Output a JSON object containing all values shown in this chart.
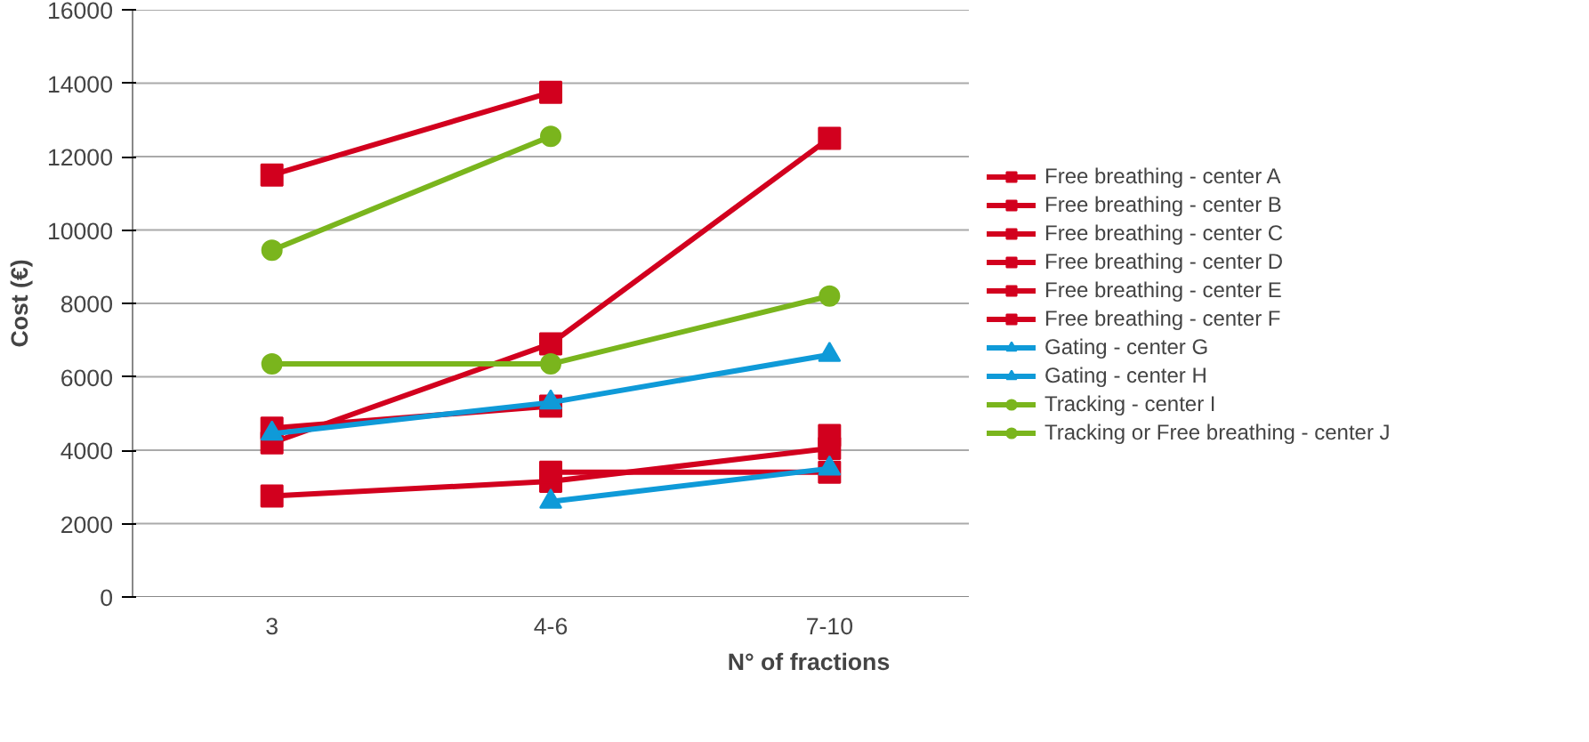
{
  "chart_data": {
    "type": "line",
    "xlabel": "N° of fractions",
    "ylabel": "Cost (€)",
    "categories": [
      "3",
      "4-6",
      "7-10"
    ],
    "ylim": [
      0,
      16000
    ],
    "yticks": [
      0,
      2000,
      4000,
      6000,
      8000,
      10000,
      12000,
      14000,
      16000
    ],
    "grid": "y",
    "legend": "right",
    "line_style": "solid",
    "series": [
      {
        "name": "Free breathing - center A",
        "color": "#d2001e",
        "marker": "square",
        "values": [
          11500,
          13750,
          null
        ]
      },
      {
        "name": "Free breathing - center B",
        "color": "#d2001e",
        "marker": "square",
        "values": [
          4200,
          6900,
          12500
        ]
      },
      {
        "name": "Free breathing - center C",
        "color": "#d2001e",
        "marker": "square",
        "values": [
          4600,
          5200,
          null
        ]
      },
      {
        "name": "Free breathing - center D",
        "color": "#d2001e",
        "marker": "square",
        "values": [
          2750,
          3150,
          4050
        ]
      },
      {
        "name": "Free breathing - center E",
        "color": "#d2001e",
        "marker": "square",
        "values": [
          null,
          3400,
          3400
        ]
      },
      {
        "name": "Free breathing - center F",
        "color": "#d2001e",
        "marker": "square",
        "values": [
          null,
          null,
          4400
        ]
      },
      {
        "name": "Gating - center G",
        "color": "#0f9ad8",
        "marker": "triangle",
        "values": [
          4450,
          5300,
          6600
        ]
      },
      {
        "name": "Gating - center H",
        "color": "#0f9ad8",
        "marker": "triangle",
        "values": [
          null,
          2600,
          3500
        ]
      },
      {
        "name": "Tracking - center I",
        "color": "#7ab51d",
        "marker": "circle",
        "values": [
          9450,
          12550,
          null
        ]
      },
      {
        "name": "Tracking or Free breathing - center J",
        "color": "#7ab51d",
        "marker": "circle",
        "values": [
          6350,
          6350,
          8200
        ]
      }
    ]
  }
}
